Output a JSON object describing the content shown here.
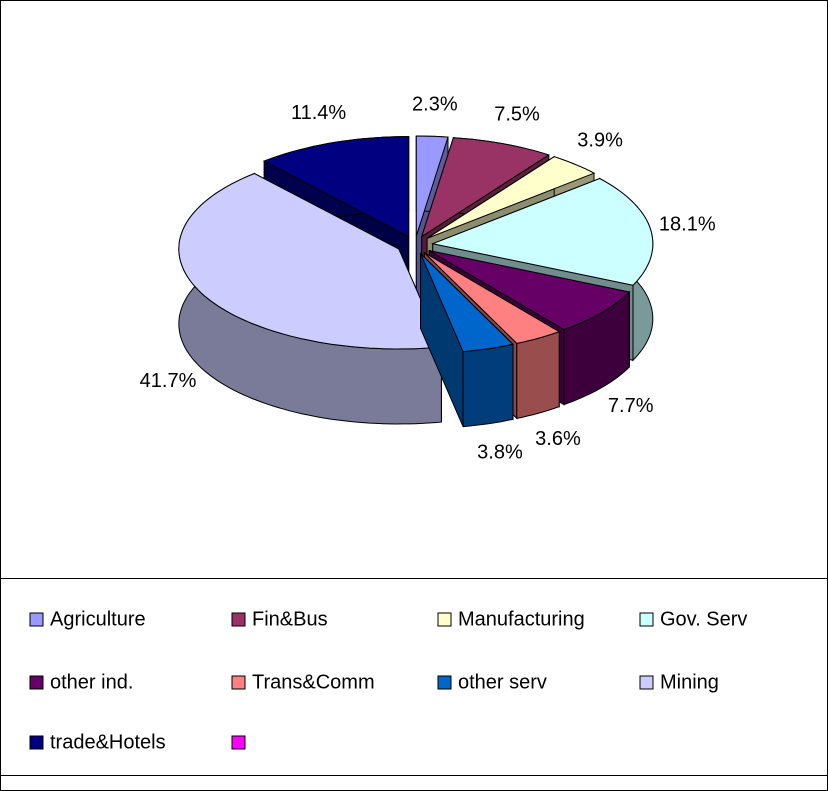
{
  "chart_data": {
    "type": "pie3d",
    "categories": [
      "Agriculture",
      "Fin&Bus",
      "Manufacturing",
      "Gov. Serv",
      "other ind.",
      "Trans&Comm",
      "other serv",
      "Mining",
      "trade&Hotels",
      null
    ],
    "values": [
      2.3,
      7.5,
      3.9,
      18.1,
      7.7,
      3.6,
      3.8,
      41.7,
      11.4,
      null
    ],
    "value_labels": [
      "2.3%",
      "7.5%",
      "3.9%",
      "18.1%",
      "7.7%",
      "3.6%",
      "3.8%",
      "41.7%",
      "11.4%",
      null
    ],
    "colors": [
      "#9999ff",
      "#993366",
      "#ffffcc",
      "#ccffff",
      "#660066",
      "#ff8080",
      "#0066cc",
      "#ccccff",
      "#000080",
      "#ff00ff"
    ],
    "legend": "bottom"
  }
}
